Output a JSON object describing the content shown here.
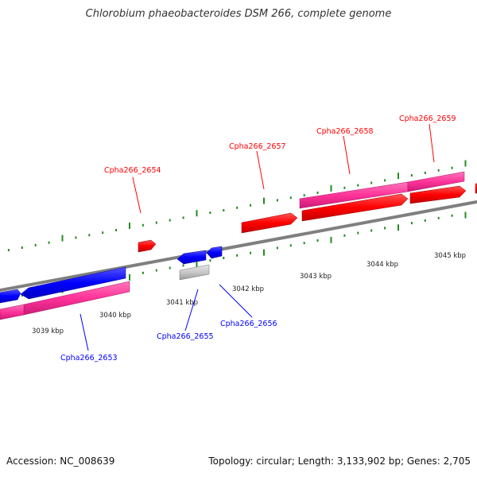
{
  "header": {
    "title": "Chlorobium phaeobacteroides DSM 266, complete genome"
  },
  "footer": {
    "accession": "Accession: NC_008639",
    "summary": "Topology: circular; Length: 3,133,902 bp; Genes: 2,705"
  },
  "colors": {
    "forward_cds": "#ff0000",
    "reverse_cds": "#0000ff",
    "other_gene": "#c0c0c0",
    "forward_rna": "#ff3399",
    "reverse_rna": "#ff3399",
    "backbone": "#7f7f7f",
    "ticks": "#228b22"
  },
  "ticks": {
    "major_labels": [
      "3039 kbp",
      "3040 kbp",
      "3041 kbp",
      "3042 kbp",
      "3043 kbp",
      "3044 kbp",
      "3045 kbp"
    ]
  },
  "genes": {
    "cpha266_2653": "Cpha266_2653",
    "cpha266_2654": "Cpha266_2654",
    "cpha266_2655": "Cpha266_2655",
    "cpha266_2656": "Cpha266_2656",
    "cpha266_2657": "Cpha266_2657",
    "cpha266_2658": "Cpha266_2658",
    "cpha266_2659": "Cpha266_2659"
  }
}
